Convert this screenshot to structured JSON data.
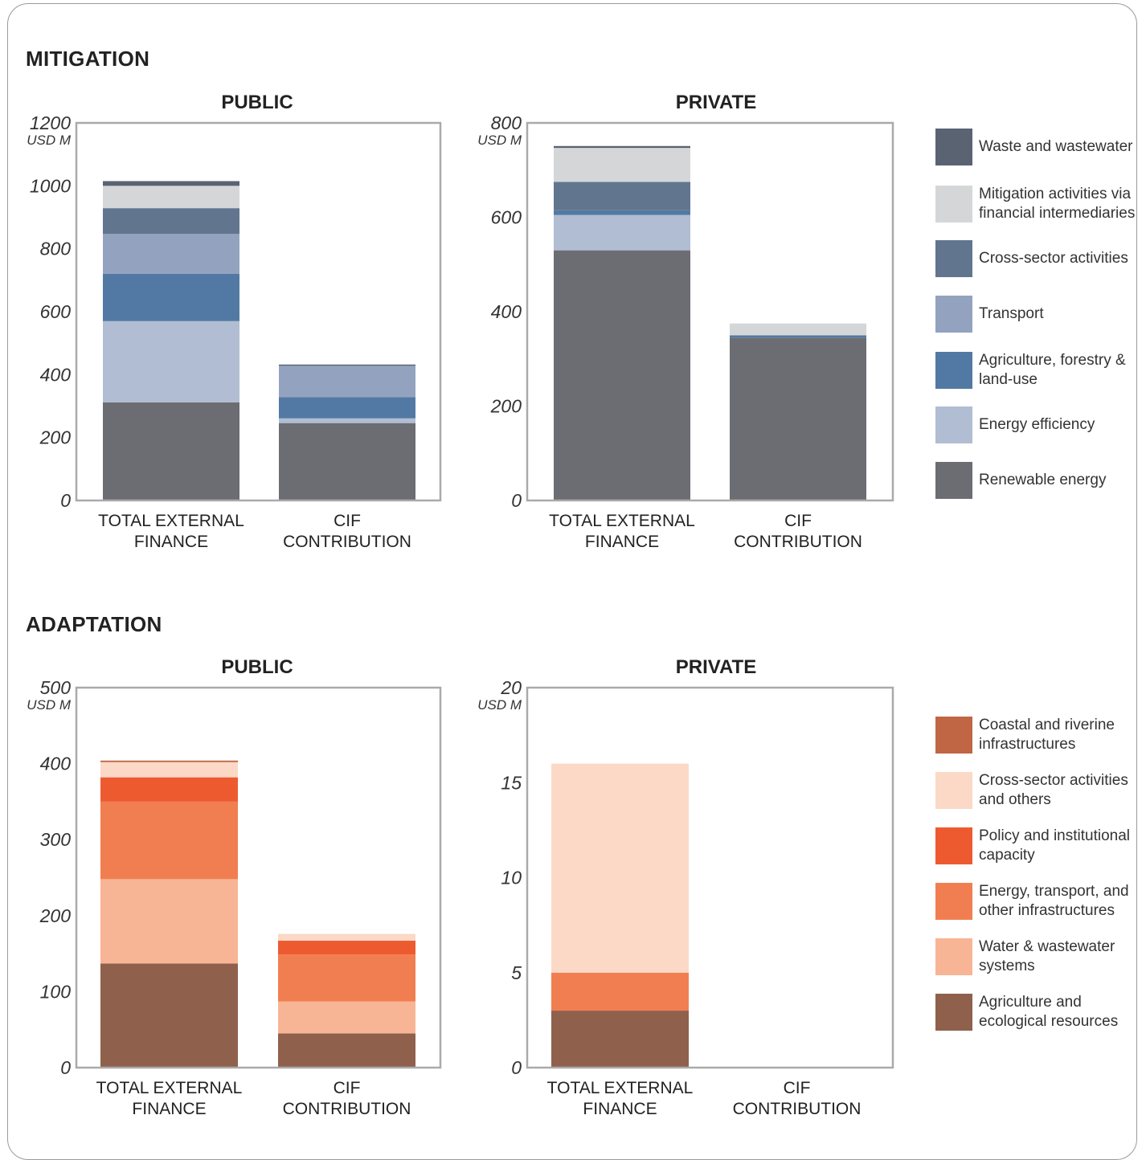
{
  "sections": {
    "mitigation": "MITIGATION",
    "adaptation": "ADAPTATION"
  },
  "legends": {
    "mitigation": [
      {
        "label": "Waste and wastewater",
        "color": "#5a6372"
      },
      {
        "label": "Mitigation activities via financial intermediaries",
        "color": "#d5d6d8"
      },
      {
        "label": "Cross-sector activities",
        "color": "#61758f"
      },
      {
        "label": "Transport",
        "color": "#93a3bf"
      },
      {
        "label": "Agriculture, forestry & land-use",
        "color": "#5279a3"
      },
      {
        "label": "Energy efficiency",
        "color": "#b1bdd2"
      },
      {
        "label": "Renewable energy",
        "color": "#6c6d72"
      }
    ],
    "adaptation": [
      {
        "label": "Coastal and riverine infrastructures",
        "color": "#c06644"
      },
      {
        "label": "Cross-sector activities and others",
        "color": "#fbd9c6"
      },
      {
        "label": "Policy and institutional capacity",
        "color": "#ee5a30"
      },
      {
        "label": "Energy, transport, and other infrastructures",
        "color": "#f17e51"
      },
      {
        "label": "Water & wastewater systems",
        "color": "#f8b595"
      },
      {
        "label": "Agriculture and ecological resources",
        "color": "#8f604c"
      }
    ]
  },
  "chart_data": [
    {
      "type": "bar",
      "stacked": true,
      "title": "PUBLIC",
      "section": "MITIGATION",
      "ylabel": "USD M",
      "ylim": [
        0,
        1200
      ],
      "yticks": [
        "0",
        "200",
        "400",
        "600",
        "800",
        "1000",
        "1200"
      ],
      "categories": [
        "TOTAL EXTERNAL FINANCE",
        "CIF CONTRIBUTION"
      ],
      "series": [
        {
          "name": "Renewable energy",
          "color": "#6c6d72",
          "values": [
            312,
            246
          ]
        },
        {
          "name": "Energy efficiency",
          "color": "#b1bdd2",
          "values": [
            258,
            15
          ]
        },
        {
          "name": "Agriculture, forestry & land-use",
          "color": "#5279a3",
          "values": [
            150,
            67
          ]
        },
        {
          "name": "Transport",
          "color": "#93a3bf",
          "values": [
            127,
            100
          ]
        },
        {
          "name": "Cross-sector activities",
          "color": "#61758f",
          "values": [
            82,
            0
          ]
        },
        {
          "name": "Mitigation activities via financial intermediaries",
          "color": "#d5d6d8",
          "values": [
            71,
            0
          ]
        },
        {
          "name": "Waste and wastewater",
          "color": "#5a6372",
          "values": [
            15,
            4
          ]
        }
      ]
    },
    {
      "type": "bar",
      "stacked": true,
      "title": "PRIVATE",
      "section": "MITIGATION",
      "ylabel": "USD M",
      "ylim": [
        0,
        800
      ],
      "yticks": [
        "0",
        "200",
        "400",
        "600",
        "800"
      ],
      "categories": [
        "TOTAL EXTERNAL FINANCE",
        "CIF CONTRIBUTION"
      ],
      "series": [
        {
          "name": "Renewable energy",
          "color": "#6c6d72",
          "values": [
            530,
            345
          ]
        },
        {
          "name": "Energy efficiency",
          "color": "#b1bdd2",
          "values": [
            75,
            0
          ]
        },
        {
          "name": "Agriculture, forestry & land-use",
          "color": "#5279a3",
          "values": [
            10,
            5
          ]
        },
        {
          "name": "Cross-sector activities",
          "color": "#61758f",
          "values": [
            60,
            0
          ]
        },
        {
          "name": "Mitigation activities via financial intermediaries",
          "color": "#d5d6d8",
          "values": [
            72,
            25
          ]
        },
        {
          "name": "Waste and wastewater",
          "color": "#5a6372",
          "values": [
            4,
            0
          ]
        }
      ]
    },
    {
      "type": "bar",
      "stacked": true,
      "title": "PUBLIC",
      "section": "ADAPTATION",
      "ylabel": "USD M",
      "ylim": [
        0,
        500
      ],
      "yticks": [
        "0",
        "100",
        "200",
        "300",
        "400",
        "500"
      ],
      "categories": [
        "TOTAL EXTERNAL FINANCE",
        "CIF CONTRIBUTION"
      ],
      "series": [
        {
          "name": "Agriculture and ecological resources",
          "color": "#8f604c",
          "values": [
            137,
            45
          ]
        },
        {
          "name": "Water & wastewater systems",
          "color": "#f8b595",
          "values": [
            111,
            42
          ]
        },
        {
          "name": "Energy, transport, and other infrastructures",
          "color": "#f17e51",
          "values": [
            102,
            62
          ]
        },
        {
          "name": "Policy and institutional capacity",
          "color": "#ee5a30",
          "values": [
            32,
            18
          ]
        },
        {
          "name": "Cross-sector activities and others",
          "color": "#fbd9c6",
          "values": [
            20,
            9
          ]
        },
        {
          "name": "Coastal and riverine infrastructures",
          "color": "#c06644",
          "values": [
            2,
            0
          ]
        }
      ]
    },
    {
      "type": "bar",
      "stacked": true,
      "title": "PRIVATE",
      "section": "ADAPTATION",
      "ylabel": "USD M",
      "ylim": [
        0,
        20
      ],
      "yticks": [
        "0",
        "5",
        "10",
        "15",
        "20"
      ],
      "categories": [
        "TOTAL EXTERNAL FINANCE",
        "CIF CONTRIBUTION"
      ],
      "series": [
        {
          "name": "Agriculture and ecological resources",
          "color": "#8f604c",
          "values": [
            3,
            0
          ]
        },
        {
          "name": "Energy, transport, and other infrastructures",
          "color": "#f17e51",
          "values": [
            2,
            0
          ]
        },
        {
          "name": "Cross-sector activities and others",
          "color": "#fbd9c6",
          "values": [
            11,
            0
          ]
        }
      ]
    }
  ]
}
